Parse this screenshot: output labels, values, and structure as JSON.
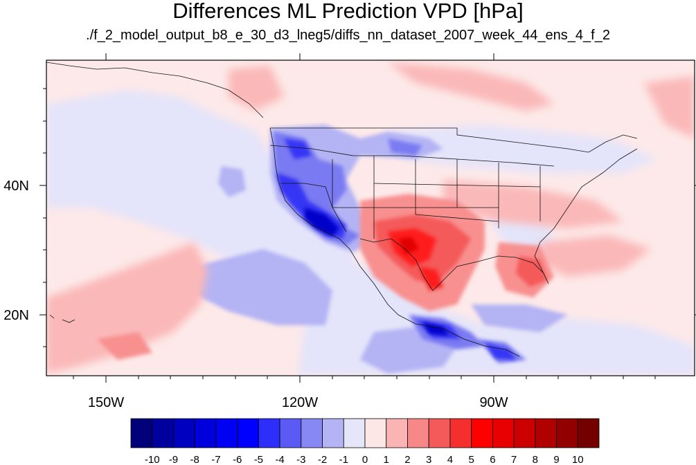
{
  "title": "Differences ML Prediction VPD [hPa]",
  "subtitle": "./f_2_model_output_b8_e_30_d3_lneg5/diffs_nn_dataset_2007_week_44_ens_4_f_2",
  "map": {
    "lon_range": [
      -160,
      -62
    ],
    "lat_range": [
      10,
      59
    ],
    "lon_ticks": [
      {
        "value": -150,
        "label": "150W"
      },
      {
        "value": -120,
        "label": "120W"
      },
      {
        "value": -90,
        "label": "90W"
      }
    ],
    "lat_ticks": [
      {
        "value": 40,
        "label": "40N"
      },
      {
        "value": 20,
        "label": "20N"
      }
    ],
    "field": "VPD difference",
    "units": "hPa"
  },
  "colorbar": {
    "labels": [
      "-10",
      "-9",
      "-8",
      "-7",
      "-6",
      "-5",
      "-4",
      "-3",
      "-2",
      "-1",
      "0",
      "1",
      "2",
      "3",
      "4",
      "5",
      "6",
      "7",
      "8",
      "9",
      "10"
    ],
    "colors": [
      "#00007a",
      "#00009e",
      "#0000c0",
      "#0000dd",
      "#0000f2",
      "#0000ff",
      "#2e2efa",
      "#5a5af5",
      "#8888f5",
      "#b4b4f5",
      "#e6e6fa",
      "#fde6e6",
      "#fbb4b4",
      "#f88888",
      "#f55a5a",
      "#f52e2e",
      "#ff0000",
      "#e80000",
      "#cc0000",
      "#b00000",
      "#920000",
      "#740000"
    ]
  }
}
